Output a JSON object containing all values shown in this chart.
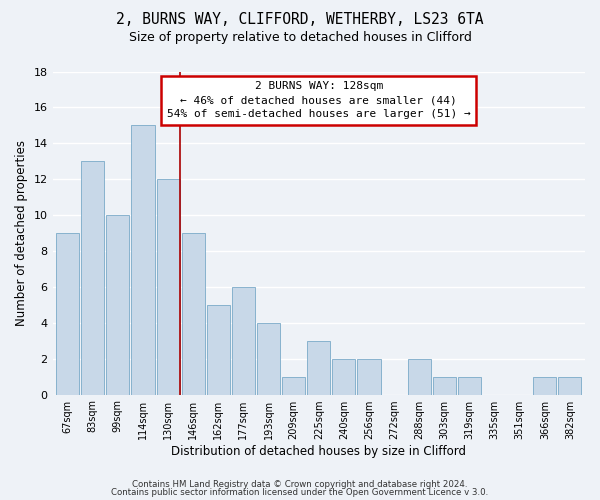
{
  "title_line1": "2, BURNS WAY, CLIFFORD, WETHERBY, LS23 6TA",
  "title_line2": "Size of property relative to detached houses in Clifford",
  "xlabel": "Distribution of detached houses by size in Clifford",
  "ylabel": "Number of detached properties",
  "categories": [
    "67sqm",
    "83sqm",
    "99sqm",
    "114sqm",
    "130sqm",
    "146sqm",
    "162sqm",
    "177sqm",
    "193sqm",
    "209sqm",
    "225sqm",
    "240sqm",
    "256sqm",
    "272sqm",
    "288sqm",
    "303sqm",
    "319sqm",
    "335sqm",
    "351sqm",
    "366sqm",
    "382sqm"
  ],
  "values": [
    9,
    13,
    10,
    15,
    12,
    9,
    5,
    6,
    4,
    1,
    3,
    2,
    2,
    0,
    2,
    1,
    1,
    0,
    0,
    1,
    1
  ],
  "bar_color": "#c8d8e8",
  "bar_edge_color": "#7aaac8",
  "highlight_index": 4,
  "highlight_line_color": "#aa0000",
  "ylim": [
    0,
    18
  ],
  "yticks": [
    0,
    2,
    4,
    6,
    8,
    10,
    12,
    14,
    16,
    18
  ],
  "annotation_title": "2 BURNS WAY: 128sqm",
  "annotation_line1": "← 46% of detached houses are smaller (44)",
  "annotation_line2": "54% of semi-detached houses are larger (51) →",
  "annotation_box_color": "#ffffff",
  "annotation_box_edge": "#cc0000",
  "footer_line1": "Contains HM Land Registry data © Crown copyright and database right 2024.",
  "footer_line2": "Contains public sector information licensed under the Open Government Licence v 3.0.",
  "background_color": "#eef2f7",
  "grid_color": "#ffffff"
}
